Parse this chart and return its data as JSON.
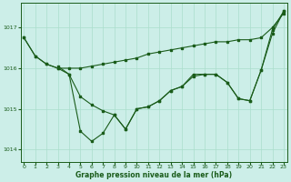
{
  "bg_color": "#cceee8",
  "grid_color": "#aaddcc",
  "line_color": "#1a5c1a",
  "xlabel": "Graphe pression niveau de la mer (hPa)",
  "ylim": [
    1013.7,
    1017.6
  ],
  "xlim": [
    -0.3,
    23.3
  ],
  "yticks": [
    1014,
    1015,
    1016,
    1017
  ],
  "xticks": [
    0,
    1,
    2,
    3,
    4,
    5,
    6,
    7,
    8,
    9,
    10,
    11,
    12,
    13,
    14,
    15,
    16,
    17,
    18,
    19,
    20,
    21,
    22,
    23
  ],
  "series1_x": [
    0,
    1,
    2,
    3,
    4,
    5,
    6,
    7,
    8,
    9,
    10,
    11,
    12,
    13,
    14,
    15,
    16,
    17,
    18,
    19,
    20,
    21,
    22,
    23
  ],
  "series1_y": [
    1016.75,
    1016.3,
    1016.1,
    1016.0,
    1016.0,
    1016.0,
    1016.05,
    1016.1,
    1016.15,
    1016.2,
    1016.25,
    1016.35,
    1016.4,
    1016.45,
    1016.5,
    1016.55,
    1016.6,
    1016.65,
    1016.65,
    1016.7,
    1016.7,
    1016.75,
    1017.0,
    1017.35
  ],
  "series2_x": [
    0,
    1,
    2,
    3,
    4,
    5,
    6,
    7,
    8,
    9,
    10,
    11,
    12,
    13,
    14,
    15,
    16,
    17,
    18,
    19,
    20,
    21,
    22,
    23
  ],
  "series2_y": [
    1016.75,
    1016.3,
    1016.1,
    1016.0,
    1015.85,
    1014.45,
    1014.2,
    1014.4,
    1014.85,
    1014.5,
    1015.0,
    1015.05,
    1015.2,
    1015.45,
    1015.55,
    1015.8,
    1015.85,
    1015.85,
    1015.65,
    1015.25,
    1015.2,
    1015.95,
    1016.95,
    1017.4
  ],
  "series3_x": [
    3,
    4,
    5,
    6,
    7,
    8,
    9,
    10,
    11,
    12,
    13,
    14,
    15,
    16,
    17,
    18,
    19,
    20,
    21,
    22,
    23
  ],
  "series3_y": [
    1016.05,
    1015.85,
    1015.3,
    1015.1,
    1014.95,
    1014.85,
    1014.5,
    1015.0,
    1015.05,
    1015.2,
    1015.45,
    1015.55,
    1015.85,
    1015.85,
    1015.85,
    1015.65,
    1015.25,
    1015.2,
    1015.95,
    1016.85,
    1017.4
  ]
}
